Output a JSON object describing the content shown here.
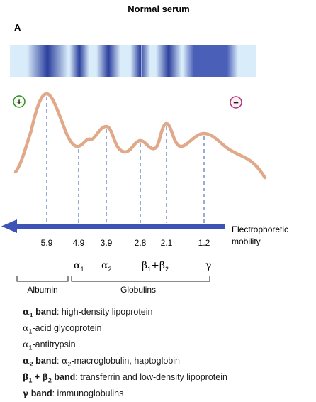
{
  "title": "Normal serum",
  "panel_label": "A",
  "plus_symbol": "+",
  "minus_symbol": "−",
  "colors": {
    "band": "#2b3f9e",
    "strip_bg": "#d9ecfa",
    "curve": "#e0aa8a",
    "guide": "#3a55b0",
    "arrow": "#3d53b5",
    "plus_ring": "#2e8b2e",
    "minus_ring": "#b0307a"
  },
  "axis_label_line1": "Electrophoretic",
  "axis_label_line2": "mobility",
  "chart_data": {
    "type": "line",
    "x_direction": "decreasing mobility left-to-right",
    "peaks": [
      {
        "mobility": 5.9,
        "label": "5.9",
        "relative_height": 1.0
      },
      {
        "mobility": 4.9,
        "label": "4.9",
        "relative_height": 0.45
      },
      {
        "mobility": 3.9,
        "label": "3.9",
        "relative_height": 0.61
      },
      {
        "mobility": 2.8,
        "label": "2.8",
        "relative_height": 0.41
      },
      {
        "mobility": 2.1,
        "label": "2.1",
        "relative_height": 0.62
      },
      {
        "mobility": 1.2,
        "label": "1.2",
        "relative_height": 0.5
      }
    ]
  },
  "fractions": [
    {
      "greek": "α",
      "sub": "1"
    },
    {
      "greek": "α",
      "sub": "2"
    },
    {
      "greek": "β",
      "sub": "1",
      "mid": "+β",
      "sub2": "2"
    },
    {
      "greek": "γ",
      "sub": ""
    }
  ],
  "groups": {
    "albumin": "Albumin",
    "globulins": "Globulins"
  },
  "legend": {
    "a1_greek": "α",
    "a1_sub": "1",
    "a1_bold": " band",
    "a1_text": ": high-density lipoprotein",
    "a1b_greek": "α",
    "a1b_sub": "1",
    "a1b_text": "-acid glycoprotein",
    "a1c_greek": "α",
    "a1c_sub": "1",
    "a1c_text": "-antitrypsin",
    "a2_greek": "α",
    "a2_sub": "2",
    "a2_bold": " band",
    "a2_text": ": ",
    "a2_greek2": "α",
    "a2_sub2": "2",
    "a2_text2": "-macroglobulin, haptoglobin",
    "b_greek": "β",
    "b_sub": "1",
    "b_plus": " + ",
    "b_greek2": "β",
    "b_sub2": "2",
    "b_bold": " band",
    "b_text": ": transferrin and low-density lipoprotein",
    "g_greek": "γ",
    "g_bold": " band",
    "g_text": ": immunoglobulins"
  }
}
